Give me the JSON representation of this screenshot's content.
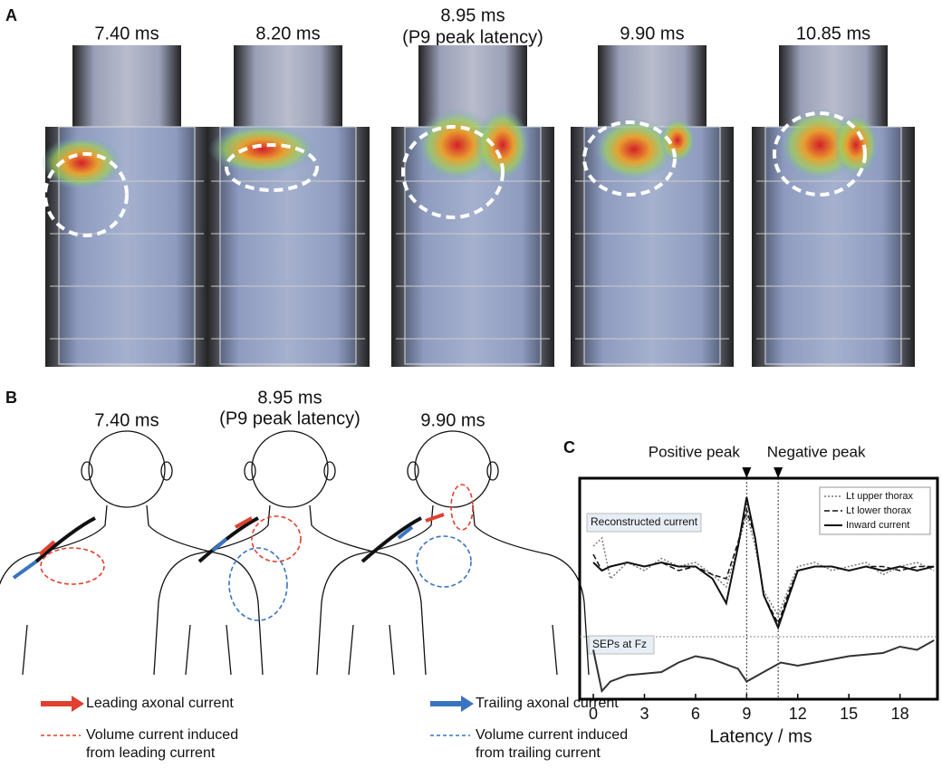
{
  "panel_a": {
    "label": "A",
    "frames": [
      {
        "title": [
          "7.40 ms"
        ]
      },
      {
        "title": [
          "8.20 ms"
        ]
      },
      {
        "title": [
          "8.95 ms",
          "(P9 peak latency)"
        ]
      },
      {
        "title": [
          "9.90 ms"
        ]
      },
      {
        "title": [
          "10.85 ms"
        ]
      }
    ]
  },
  "panel_b": {
    "label": "B",
    "figures": [
      {
        "title": [
          "7.40 ms"
        ]
      },
      {
        "title": [
          "8.95 ms",
          "(P9 peak latency)"
        ]
      },
      {
        "title": [
          "9.90 ms"
        ]
      }
    ],
    "legend": [
      {
        "name": "leading",
        "color": "#e0402f",
        "style": "arrow",
        "lines": [
          "Leading axonal current"
        ]
      },
      {
        "name": "trailing",
        "color": "#3a74c0",
        "style": "arrow",
        "lines": [
          "Trailing axonal current"
        ]
      },
      {
        "name": "vol-leading",
        "color": "#e0402f",
        "style": "dashed",
        "lines": [
          "Volume current induced",
          "from leading current"
        ]
      },
      {
        "name": "vol-trailing",
        "color": "#3a74c0",
        "style": "dashed",
        "lines": [
          "Volume current induced",
          "from trailing current"
        ]
      }
    ]
  },
  "panel_c": {
    "label": "C",
    "type": "line",
    "xlabel": "Latency / ms",
    "xlim": [
      -0.8,
      20.2
    ],
    "xticks": [
      0,
      3,
      6,
      9,
      12,
      15,
      18
    ],
    "annotations": [
      {
        "text": "Positive peak",
        "x": 9
      },
      {
        "text": "Negative peak",
        "x": 10.85
      }
    ],
    "subplots": [
      {
        "label": "Reconstructed current",
        "ylim": [
          -1,
          1
        ],
        "x": [
          0,
          0.5,
          1,
          2,
          3,
          4,
          5,
          6,
          7,
          7.8,
          8.5,
          9,
          9.5,
          10,
          10.85,
          11.5,
          12,
          13,
          14,
          15,
          16,
          17,
          18,
          19,
          20
        ],
        "series": [
          {
            "name": "Lt upper thorax",
            "color": "#777777",
            "style": "dotted",
            "values": [
              0.3,
              0.4,
              -0.1,
              0.1,
              0,
              0.15,
              0.05,
              0.1,
              -0.05,
              -0.2,
              0.3,
              0.7,
              0.3,
              -0.25,
              -0.55,
              -0.2,
              0.05,
              0.1,
              0,
              0.05,
              0.1,
              -0.05,
              0.05,
              0.1,
              0
            ]
          },
          {
            "name": "Lt lower thorax",
            "color": "#111111",
            "style": "dashed",
            "values": [
              0.2,
              0,
              0.05,
              0.1,
              0.05,
              0.1,
              0,
              0.05,
              -0.05,
              -0.1,
              0.35,
              0.75,
              0.4,
              -0.3,
              -0.65,
              -0.25,
              0,
              0.05,
              0.05,
              0,
              0.05,
              0.05,
              0,
              0.05,
              0.05
            ]
          },
          {
            "name": "Inward current",
            "color": "#111111",
            "style": "solid",
            "values": [
              0.1,
              0,
              0.05,
              0.1,
              0.05,
              0.1,
              0.05,
              0.05,
              -0.1,
              -0.4,
              0.3,
              0.9,
              0.4,
              -0.3,
              -0.7,
              -0.3,
              0,
              0.05,
              0.05,
              0,
              0.05,
              0,
              0.05,
              0,
              0.05
            ]
          }
        ]
      },
      {
        "label": "SEPs at Fz",
        "ylim": [
          -1,
          1
        ],
        "x": [
          0,
          0.5,
          1,
          2,
          3,
          4,
          5,
          6,
          7,
          8.5,
          9,
          10,
          11,
          12,
          13,
          14,
          15,
          16,
          17,
          18,
          19,
          20
        ],
        "series": [
          {
            "name": "SEPs",
            "color": "#333333",
            "style": "solid",
            "values": [
              0.5,
              -0.8,
              -0.5,
              -0.3,
              -0.25,
              -0.2,
              0.1,
              0.3,
              0.2,
              -0.1,
              -0.5,
              -0.2,
              0.1,
              0,
              0.1,
              0.2,
              0.3,
              0.35,
              0.4,
              0.6,
              0.5,
              0.8
            ]
          }
        ]
      }
    ]
  }
}
